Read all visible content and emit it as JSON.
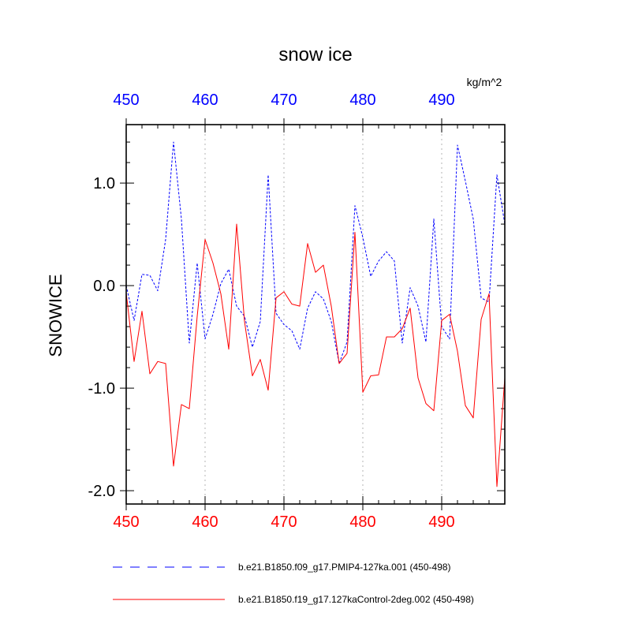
{
  "chart_data": {
    "type": "line",
    "title": "snow ice",
    "units": "kg/m^2",
    "ylabel": "SNOWICE",
    "xlabel": "",
    "xlim": [
      450,
      498
    ],
    "ylim": [
      -2.13,
      1.57
    ],
    "x_ticks": [
      450,
      460,
      470,
      480,
      490
    ],
    "x_tick_labels": [
      "450",
      "460",
      "470",
      "480",
      "490"
    ],
    "y_ticks": [
      1.0,
      0.0,
      -1.0,
      -2.0
    ],
    "y_tick_labels": [
      "1.0",
      "0.0",
      "-1.0",
      "-2.0"
    ],
    "grid": "vertical dotted at major x ticks",
    "x": [
      450,
      451,
      452,
      453,
      454,
      455,
      456,
      457,
      458,
      459,
      460,
      461,
      462,
      463,
      464,
      465,
      466,
      467,
      468,
      469,
      470,
      471,
      472,
      473,
      474,
      475,
      476,
      477,
      478,
      479,
      480,
      481,
      482,
      483,
      484,
      485,
      486,
      487,
      488,
      489,
      490,
      491,
      492,
      493,
      494,
      495,
      496,
      497,
      498
    ],
    "series": [
      {
        "name": "b.e21.B1850.f09_g17.PMIP4-127ka.001 (450-498)",
        "color": "#0000ff",
        "style": "dashed",
        "values": [
          0.0,
          -0.34,
          0.11,
          0.1,
          -0.05,
          0.45,
          1.4,
          0.65,
          -0.56,
          0.22,
          -0.52,
          -0.28,
          0.02,
          0.16,
          -0.2,
          -0.3,
          -0.6,
          -0.35,
          1.08,
          -0.27,
          -0.38,
          -0.44,
          -0.62,
          -0.22,
          -0.06,
          -0.13,
          -0.35,
          -0.76,
          -0.55,
          0.78,
          0.47,
          0.09,
          0.24,
          0.33,
          0.24,
          -0.56,
          -0.02,
          -0.2,
          -0.55,
          0.65,
          -0.4,
          -0.52,
          1.37,
          1.02,
          0.65,
          -0.12,
          -0.16,
          1.08,
          0.6
        ]
      },
      {
        "name": "b.e21.B1850.f19_g17.127kaControl-2deg.002 (450-498)",
        "color": "#ff0000",
        "style": "solid",
        "values": [
          -0.07,
          -0.74,
          -0.25,
          -0.86,
          -0.74,
          -0.76,
          -1.76,
          -1.16,
          -1.2,
          -0.3,
          0.45,
          0.22,
          -0.08,
          -0.62,
          0.6,
          -0.35,
          -0.88,
          -0.72,
          -1.02,
          -0.12,
          -0.06,
          -0.18,
          -0.2,
          0.41,
          0.13,
          0.2,
          -0.2,
          -0.76,
          -0.66,
          0.52,
          -1.04,
          -0.88,
          -0.87,
          -0.5,
          -0.5,
          -0.42,
          -0.22,
          -0.9,
          -1.15,
          -1.22,
          -0.34,
          -0.28,
          -0.64,
          -1.17,
          -1.29,
          -0.33,
          -0.08,
          -1.96,
          -0.9
        ]
      }
    ]
  }
}
